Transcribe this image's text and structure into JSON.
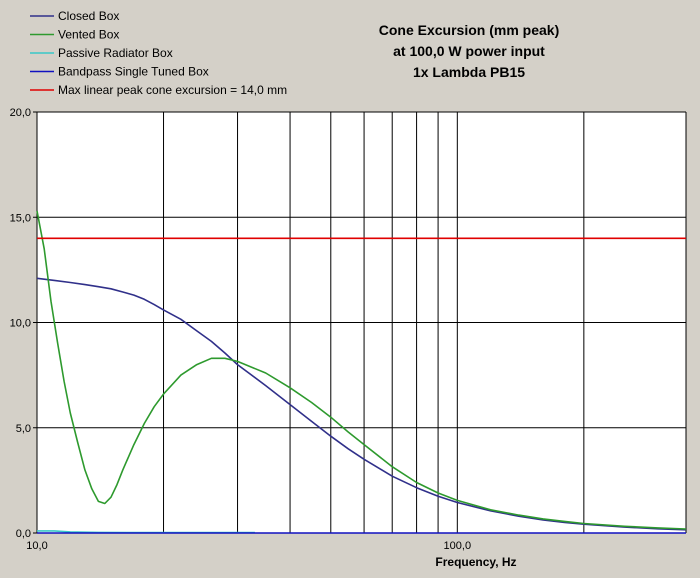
{
  "chart_data": {
    "type": "line",
    "title_lines": [
      "Cone Excursion (mm peak)",
      "at 100,0 W power input",
      "1x Lambda PB15"
    ],
    "xlabel": "Frequency, Hz",
    "ylabel": "",
    "x_scale": "log",
    "xlim": [
      10,
      350
    ],
    "ylim": [
      0,
      20
    ],
    "grid": true,
    "legend_position": "top-left",
    "x_ticks": [
      {
        "value": 10,
        "label": "10,0"
      },
      {
        "value": 100,
        "label": "100,0"
      }
    ],
    "x_gridlines": [
      10,
      20,
      30,
      40,
      50,
      60,
      70,
      80,
      90,
      100,
      200
    ],
    "y_ticks": [
      {
        "value": 0,
        "label": "0,0"
      },
      {
        "value": 5,
        "label": "5,0"
      },
      {
        "value": 10,
        "label": "10,0"
      },
      {
        "value": 15,
        "label": "15,0"
      },
      {
        "value": 20,
        "label": "20,0"
      }
    ],
    "series": [
      {
        "name": "Closed Box",
        "color": "#30308a",
        "points": [
          [
            10,
            12.1
          ],
          [
            11,
            12.0
          ],
          [
            12,
            11.9
          ],
          [
            13,
            11.8
          ],
          [
            14,
            11.7
          ],
          [
            15,
            11.6
          ],
          [
            16,
            11.45
          ],
          [
            17,
            11.3
          ],
          [
            18,
            11.1
          ],
          [
            19,
            10.85
          ],
          [
            20,
            10.6
          ],
          [
            22,
            10.15
          ],
          [
            24,
            9.6
          ],
          [
            26,
            9.1
          ],
          [
            28,
            8.55
          ],
          [
            30,
            8.0
          ],
          [
            35,
            7.0
          ],
          [
            40,
            6.1
          ],
          [
            45,
            5.3
          ],
          [
            50,
            4.6
          ],
          [
            55,
            4.0
          ],
          [
            60,
            3.5
          ],
          [
            70,
            2.7
          ],
          [
            80,
            2.15
          ],
          [
            90,
            1.75
          ],
          [
            100,
            1.45
          ],
          [
            120,
            1.05
          ],
          [
            140,
            0.8
          ],
          [
            160,
            0.62
          ],
          [
            180,
            0.5
          ],
          [
            200,
            0.42
          ],
          [
            250,
            0.28
          ],
          [
            300,
            0.2
          ],
          [
            350,
            0.15
          ]
        ]
      },
      {
        "name": "Vented Box",
        "color": "#2e9a2e",
        "points": [
          [
            10,
            15.3
          ],
          [
            10.4,
            13.5
          ],
          [
            10.8,
            11.0
          ],
          [
            11.2,
            9.0
          ],
          [
            11.6,
            7.2
          ],
          [
            12,
            5.7
          ],
          [
            12.5,
            4.3
          ],
          [
            13,
            3.0
          ],
          [
            13.5,
            2.1
          ],
          [
            14,
            1.5
          ],
          [
            14.5,
            1.4
          ],
          [
            15,
            1.7
          ],
          [
            15.5,
            2.3
          ],
          [
            16,
            3.0
          ],
          [
            17,
            4.2
          ],
          [
            18,
            5.2
          ],
          [
            19,
            6.0
          ],
          [
            20,
            6.6
          ],
          [
            22,
            7.5
          ],
          [
            24,
            8.0
          ],
          [
            26,
            8.3
          ],
          [
            28,
            8.3
          ],
          [
            30,
            8.15
          ],
          [
            35,
            7.6
          ],
          [
            40,
            6.9
          ],
          [
            45,
            6.2
          ],
          [
            50,
            5.5
          ],
          [
            55,
            4.8
          ],
          [
            60,
            4.2
          ],
          [
            70,
            3.15
          ],
          [
            80,
            2.4
          ],
          [
            90,
            1.9
          ],
          [
            100,
            1.55
          ],
          [
            120,
            1.1
          ],
          [
            140,
            0.85
          ],
          [
            160,
            0.67
          ],
          [
            180,
            0.55
          ],
          [
            200,
            0.45
          ],
          [
            250,
            0.32
          ],
          [
            300,
            0.24
          ],
          [
            350,
            0.19
          ]
        ]
      },
      {
        "name": "Passive Radiator Box",
        "color": "#38c8c8",
        "points": [
          [
            10,
            0.1
          ],
          [
            11,
            0.1
          ],
          [
            12,
            0.05
          ],
          [
            14,
            0.03
          ],
          [
            20,
            0.02
          ],
          [
            25,
            0.02
          ],
          [
            29,
            0.02
          ],
          [
            33,
            0.02
          ]
        ]
      },
      {
        "name": "Bandpass Single Tuned Box",
        "color": "#1010c0",
        "points": [
          [
            10,
            0.0
          ],
          [
            350,
            0.0
          ]
        ]
      },
      {
        "name": "Max linear peak cone excursion = 14,0 mm",
        "color": "#e00000",
        "points": [
          [
            10,
            14.0
          ],
          [
            350,
            14.0
          ]
        ]
      }
    ]
  }
}
